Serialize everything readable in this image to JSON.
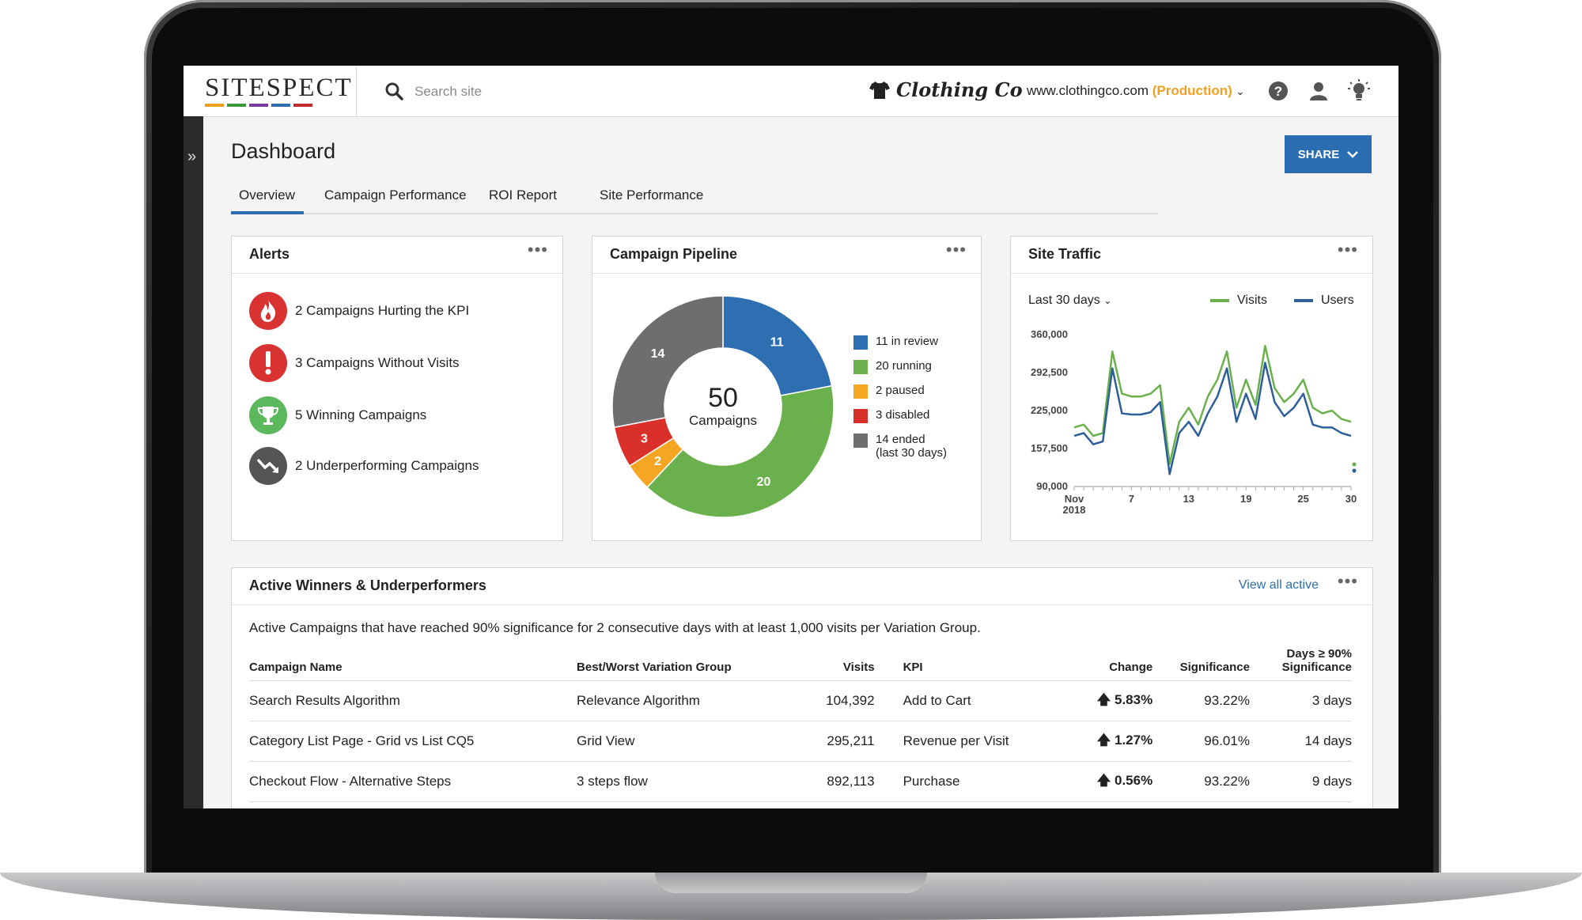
{
  "header": {
    "logo_text": "SITESPECT",
    "logo_bar_colors": [
      "#f0a020",
      "#3a9a3a",
      "#7a3aa0",
      "#2a6db0",
      "#c02a2a"
    ],
    "search_placeholder": "Search site",
    "brand_name": "Clothing Co",
    "site_url": "www.clothingco.com",
    "site_env": "(Production)",
    "icons": [
      "help-icon",
      "user-icon",
      "lightbulb-icon"
    ]
  },
  "page": {
    "title": "Dashboard",
    "share_label": "SHARE",
    "tabs": [
      {
        "label": "Overview",
        "active": true
      },
      {
        "label": "Campaign Performance"
      },
      {
        "label": "ROI Report"
      },
      {
        "label": "Site Performance"
      }
    ]
  },
  "alerts": {
    "title": "Alerts",
    "items": [
      {
        "text": "2 Campaigns Hurting the KPI",
        "icon": "fire-icon",
        "color": "#d83232"
      },
      {
        "text": "3 Campaigns Without Visits",
        "icon": "exclamation-icon",
        "color": "#d83232"
      },
      {
        "text": "5 Winning Campaigns",
        "icon": "trophy-icon",
        "color": "#5cb85c"
      },
      {
        "text": "2 Underperforming Campaigns",
        "icon": "trend-down-icon",
        "color": "#555555"
      }
    ]
  },
  "pipeline": {
    "title": "Campaign Pipeline",
    "center_value": "50",
    "center_label": "Campaigns",
    "legend": [
      {
        "text": "11 in review",
        "color": "#2e6fb2"
      },
      {
        "text": "20 running",
        "color": "#6ab04c"
      },
      {
        "text": "2 paused",
        "color": "#f5a623"
      },
      {
        "text": "3 disabled",
        "color": "#d9302a"
      },
      {
        "text": "14 ended",
        "sub": "(last 30 days)",
        "color": "#6e6e70"
      }
    ]
  },
  "traffic": {
    "title": "Site Traffic",
    "range_label": "Last 30 days",
    "legend_visits": "Visits",
    "legend_users": "Users",
    "visits_color": "#6ab04c",
    "users_color": "#2e5f9a",
    "y_ticks": [
      "360,000",
      "292,500",
      "225,000",
      "157,500",
      "90,000"
    ],
    "x_ticks": [
      {
        "label": "Nov",
        "sub": "2018",
        "day": 1
      },
      {
        "label": "7",
        "day": 7
      },
      {
        "label": "13",
        "day": 13
      },
      {
        "label": "19",
        "day": 19
      },
      {
        "label": "25",
        "day": 25
      },
      {
        "label": "30",
        "day": 30
      }
    ]
  },
  "chart_data": [
    {
      "type": "pie",
      "categories": [
        "in review",
        "running",
        "paused",
        "disabled",
        "ended"
      ],
      "values": [
        11,
        20,
        2,
        3,
        14
      ],
      "labels": [
        "11",
        "20",
        "2",
        "3",
        "14"
      ],
      "colors": [
        "#2e6fb2",
        "#6ab04c",
        "#f5a623",
        "#d9302a",
        "#6e6e70"
      ]
    },
    {
      "type": "line",
      "x": [
        1,
        2,
        3,
        4,
        5,
        6,
        7,
        8,
        9,
        10,
        11,
        12,
        13,
        14,
        15,
        16,
        17,
        18,
        19,
        20,
        21,
        22,
        23,
        24,
        25,
        26,
        27,
        28,
        29,
        30
      ],
      "series": [
        {
          "name": "Visits",
          "values": [
            195000,
            200000,
            180000,
            185000,
            330000,
            255000,
            250000,
            250000,
            255000,
            270000,
            130000,
            205000,
            230000,
            200000,
            250000,
            280000,
            330000,
            230000,
            280000,
            235000,
            340000,
            265000,
            240000,
            255000,
            280000,
            230000,
            220000,
            225000,
            210000,
            205000
          ]
        },
        {
          "name": "Users",
          "values": [
            180000,
            185000,
            165000,
            170000,
            300000,
            220000,
            218000,
            218000,
            222000,
            240000,
            112000,
            185000,
            205000,
            180000,
            220000,
            250000,
            300000,
            205000,
            255000,
            210000,
            310000,
            240000,
            215000,
            230000,
            255000,
            200000,
            195000,
            195000,
            185000,
            180000
          ]
        }
      ],
      "ylim": [
        90000,
        360000
      ],
      "xlim": [
        1,
        30
      ],
      "legend": "top-right",
      "grid": false
    }
  ],
  "winners": {
    "title": "Active Winners & Underperformers",
    "view_all": "View all active",
    "description": "Active Campaigns that have reached 90% significance for 2 consecutive days with at least 1,000 visits per Variation Group.",
    "columns": [
      "Campaign Name",
      "Best/Worst Variation Group",
      "Visits",
      "KPI",
      "Change",
      "Significance",
      "Days ≥ 90%",
      "Significance"
    ],
    "rows": [
      {
        "name": "Search Results Algorithm",
        "group": "Relevance Algorithm",
        "visits": "104,392",
        "kpi": "Add to Cart",
        "change": "5.83%",
        "significance": "93.22%",
        "days": "3 days"
      },
      {
        "name": "Category List Page - Grid vs List CQ5",
        "group": "Grid View",
        "visits": "295,211",
        "kpi": "Revenue per Visit",
        "change": "1.27%",
        "significance": "96.01%",
        "days": "14 days"
      },
      {
        "name": "Checkout Flow - Alternative Steps",
        "group": "3 steps flow",
        "visits": "892,113",
        "kpi": "Purchase",
        "change": "0.56%",
        "significance": "93.22%",
        "days": "9 days"
      }
    ]
  }
}
